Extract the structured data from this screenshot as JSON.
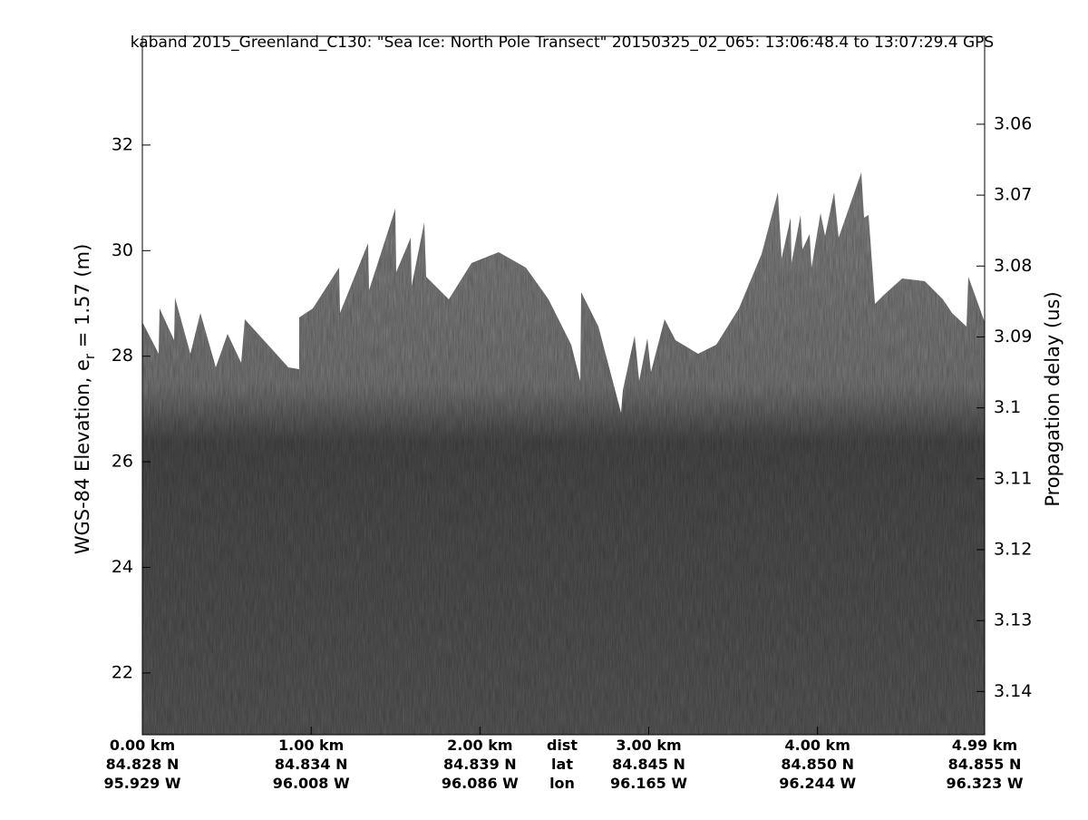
{
  "chart_data": {
    "type": "echogram",
    "title": "kaband 2015_Greenland_C130: \"Sea Ice: North Pole Transect\"  20150325_02_065: 13:06:48.4 to 13:07:29.4 GPS",
    "ylabel": "WGS-84 Elevation, e",
    "ylabel_sub": "r",
    "ylabel_end": " = 1.57 (m)",
    "y2label": "Propagation delay (us)",
    "ylim": [
      20.83,
      34.06
    ],
    "yticks": [
      22,
      24,
      26,
      28,
      30,
      32
    ],
    "y2lim": [
      3.1461,
      3.0476
    ],
    "y2ticks": [
      3.06,
      3.07,
      3.08,
      3.09,
      3.1,
      3.11,
      3.12,
      3.13,
      3.14
    ],
    "xlim": [
      0,
      4.99
    ],
    "xticks": [
      {
        "value": 0,
        "label": "0.00 km"
      },
      {
        "value": 1,
        "label": "1.00 km"
      },
      {
        "value": 2,
        "label": "2.00 km"
      },
      {
        "value": 3,
        "label": "3.00 km"
      },
      {
        "value": 4,
        "label": "4.00 km"
      },
      {
        "value": 4.99,
        "label": "4.99 km"
      }
    ],
    "xtick_lat": [
      "84.828 N",
      "84.834 N",
      "84.839 N",
      "84.845 N",
      "84.850 N",
      "84.855 N"
    ],
    "xtick_lon": [
      "95.929 W",
      "96.008 W",
      "96.086 W",
      "96.165 W",
      "96.244 W",
      "96.323 W"
    ],
    "x_row_labels": [
      "dist",
      "lat",
      "lon"
    ]
  }
}
